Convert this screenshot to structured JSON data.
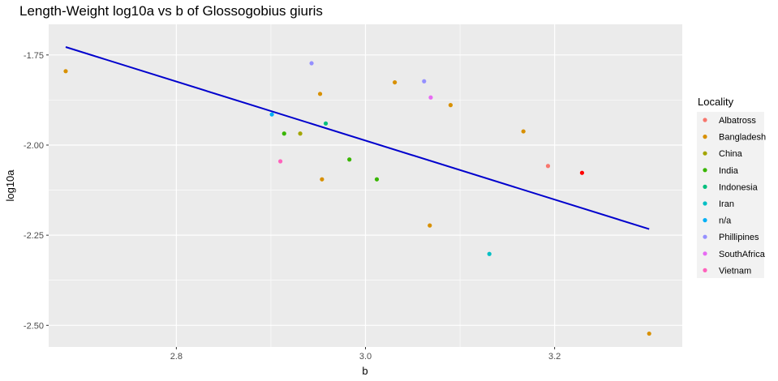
{
  "chart_data": {
    "type": "scatter",
    "title": "Length-Weight log10a vs b of Glossogobius giuris",
    "xlabel": "b",
    "ylabel": "log10a",
    "xlim": [
      2.665,
      3.335
    ],
    "ylim": [
      -2.56,
      -1.665
    ],
    "x_ticks": [
      2.8,
      3.0,
      3.2
    ],
    "x_tick_labels": [
      "2.8",
      "3.0",
      "3.2"
    ],
    "y_ticks": [
      -1.75,
      -2.0,
      -2.25,
      -2.5
    ],
    "y_tick_labels": [
      "-1.75",
      "-2.00",
      "-2.25",
      "-2.50"
    ],
    "grid": true,
    "legend_title": "Locality",
    "legend_position": "right",
    "series": [
      {
        "name": "Albatross",
        "color": "#F8766D",
        "points": [
          [
            3.193,
            -2.058
          ]
        ]
      },
      {
        "name": "Bangladesh",
        "color": "#D89000",
        "points": [
          [
            2.683,
            -1.795
          ],
          [
            2.952,
            -1.858
          ],
          [
            2.954,
            -2.095
          ],
          [
            3.031,
            -1.826
          ],
          [
            3.068,
            -2.223
          ],
          [
            3.09,
            -1.889
          ],
          [
            3.167,
            -1.962
          ],
          [
            3.3,
            -2.523
          ]
        ]
      },
      {
        "name": "China",
        "color": "#A3A500",
        "points": [
          [
            2.931,
            -1.968
          ]
        ]
      },
      {
        "name": "India",
        "color": "#39B600",
        "points": [
          [
            2.914,
            -1.968
          ],
          [
            2.983,
            -2.04
          ],
          [
            3.012,
            -2.095
          ]
        ]
      },
      {
        "name": "Indonesia",
        "color": "#00BF7D",
        "points": [
          [
            2.958,
            -1.94
          ]
        ]
      },
      {
        "name": "Iran",
        "color": "#00BFC4",
        "points": [
          [
            3.131,
            -2.302
          ]
        ]
      },
      {
        "name": "n/a",
        "color": "#00B0F6",
        "points": [
          [
            2.901,
            -1.915
          ]
        ]
      },
      {
        "name": "Phillipines",
        "color": "#9590FF",
        "points": [
          [
            2.943,
            -1.773
          ],
          [
            3.062,
            -1.823
          ]
        ]
      },
      {
        "name": "SouthAfrica",
        "color": "#E76BF3",
        "points": [
          [
            3.069,
            -1.868
          ]
        ]
      },
      {
        "name": "Vietnam",
        "color": "#FF62BC",
        "points": [
          [
            2.91,
            -2.045
          ]
        ]
      }
    ],
    "extra_points": [
      {
        "x": 3.229,
        "y": -2.077,
        "color": "#FF0000"
      }
    ],
    "trend_line": {
      "x": [
        2.683,
        3.3
      ],
      "y": [
        -1.728,
        -2.233
      ],
      "color": "#0000CD"
    },
    "plot_background": "#EBEBEB",
    "grid_color": "#FFFFFF"
  }
}
